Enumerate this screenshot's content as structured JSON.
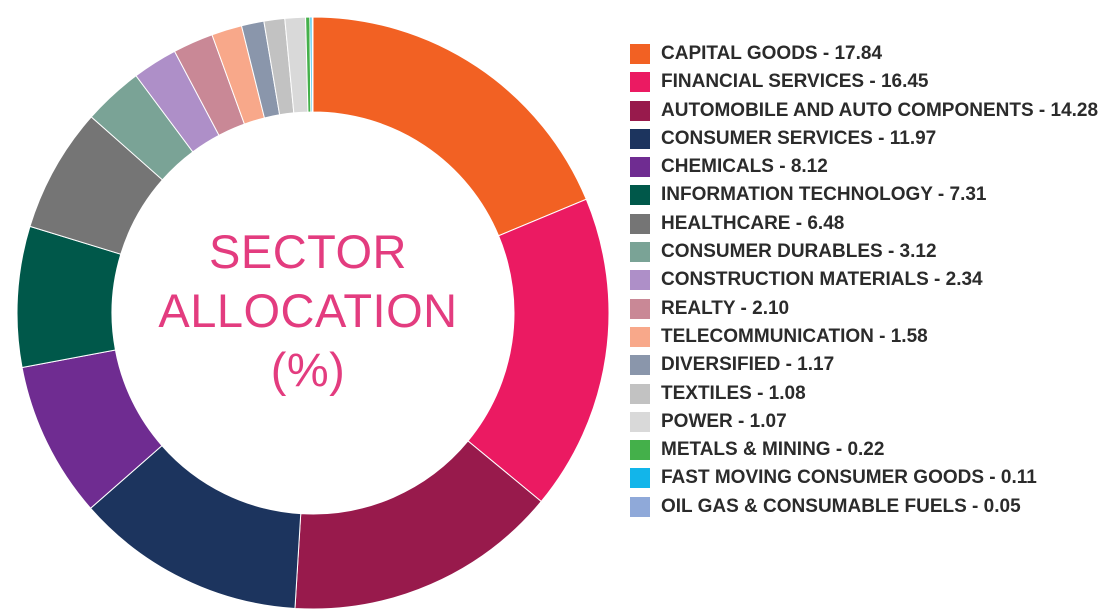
{
  "chart_data": {
    "type": "pie",
    "variant": "donut",
    "title": [
      "SECTOR",
      "ALLOCATION",
      "(%)"
    ],
    "legend_placement": "right",
    "categories": [
      "CAPITAL GOODS",
      "FINANCIAL SERVICES",
      "AUTOMOBILE AND AUTO COMPONENTS",
      "CONSUMER SERVICES",
      "CHEMICALS",
      "INFORMATION TECHNOLOGY",
      "HEALTHCARE",
      "CONSUMER DURABLES",
      "CONSTRUCTION MATERIALS",
      "REALTY",
      "TELECOMMUNICATION",
      "DIVERSIFIED",
      "TEXTILES",
      "POWER",
      "METALS & MINING",
      "FAST MOVING CONSUMER GOODS",
      "OIL GAS & CONSUMABLE FUELS"
    ],
    "values": [
      17.84,
      16.45,
      14.28,
      11.97,
      8.12,
      7.31,
      6.48,
      3.12,
      2.34,
      2.1,
      1.58,
      1.17,
      1.08,
      1.07,
      0.22,
      0.11,
      0.05
    ],
    "value_labels": [
      "17.84",
      "16.45",
      "14.28",
      "11.97",
      "8.12",
      "7.31",
      "6.48",
      "3.12",
      "2.34",
      "2.10",
      "1.58",
      "1.17",
      "1.08",
      "1.07",
      "0.22",
      "0.11",
      "0.05"
    ],
    "legend_entries": [
      "CAPITAL GOODS - 17.84",
      "FINANCIAL SERVICES - 16.45",
      "AUTOMOBILE AND AUTO COMPONENTS - 14.28",
      "CONSUMER SERVICES - 11.97",
      "CHEMICALS - 8.12",
      "INFORMATION TECHNOLOGY - 7.31",
      "HEALTHCARE - 6.48",
      "CONSUMER DURABLES - 3.12",
      "CONSTRUCTION MATERIALS - 2.34",
      "REALTY - 2.10",
      "TELECOMMUNICATION - 1.58",
      "DIVERSIFIED - 1.17",
      "TEXTILES - 1.08",
      "POWER - 1.07",
      "METALS & MINING - 0.22",
      "FAST MOVING CONSUMER GOODS  - 0.11",
      "OIL GAS & CONSUMABLE FUELS  - 0.05"
    ],
    "colors": [
      "#f26123",
      "#eb1a62",
      "#981a4c",
      "#1c345e",
      "#6f2c91",
      "#00584a",
      "#757575",
      "#7aa396",
      "#ae8fc8",
      "#c98896",
      "#f8a88a",
      "#8a96ab",
      "#c2c2c2",
      "#d9d9d9",
      "#44b04a",
      "#12b5ea",
      "#8fa9d9"
    ],
    "label_color": "#e33c7f",
    "text_color": "#2b2b2b"
  }
}
